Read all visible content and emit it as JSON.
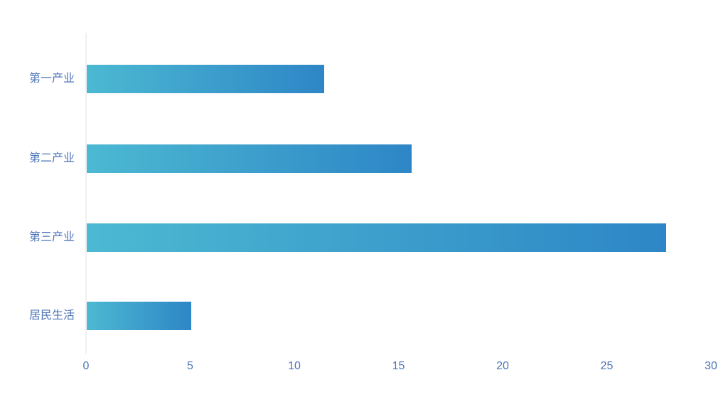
{
  "chart_data": {
    "type": "bar",
    "orientation": "horizontal",
    "title": "",
    "xlabel": "",
    "ylabel": "",
    "categories": [
      "第一产业",
      "第二产业",
      "第三产业",
      "居民生活"
    ],
    "values": [
      11.4,
      15.6,
      27.8,
      5
    ],
    "xlim": [
      0,
      30
    ],
    "x_ticks": [
      "0",
      "5",
      "10",
      "15",
      "20",
      "25",
      "30"
    ],
    "grid": false,
    "legend_position": "none",
    "colors": {
      "bar_gradient_start": "#4cb9d2",
      "bar_gradient_end": "#2e86c6",
      "axis_label": "#4c74b8",
      "axis_line": "#f0f0f1",
      "background": "#ffffff"
    }
  }
}
